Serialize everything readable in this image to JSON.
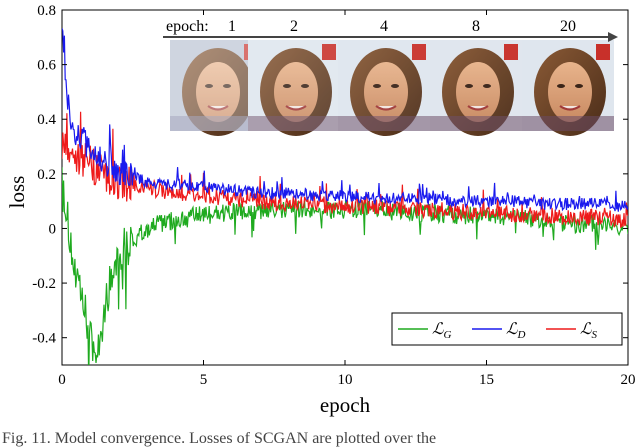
{
  "chart_data": {
    "type": "line",
    "xlabel": "epoch",
    "ylabel": "loss",
    "xlim": [
      0,
      20
    ],
    "ylim": [
      -0.5,
      0.8
    ],
    "xticks": [
      "0",
      "5",
      "10",
      "15",
      "20"
    ],
    "yticks": [
      "-0.4",
      "-0.2",
      "0",
      "0.2",
      "0.4",
      "0.6",
      "0.8"
    ],
    "legend_placement": "bottom-right",
    "series": [
      {
        "name": "L_G",
        "legend_main": "ℒ",
        "legend_sub": "G",
        "color": "#1faa1f",
        "x": [
          0,
          0.1,
          0.3,
          0.5,
          0.8,
          1.0,
          1.2,
          1.5,
          1.8,
          2.0,
          2.5,
          3,
          3.5,
          4,
          5,
          6,
          7,
          8,
          9,
          10,
          11,
          12,
          13,
          14,
          15,
          16,
          17,
          18,
          19,
          20
        ],
        "y": [
          0.3,
          0.1,
          -0.05,
          -0.2,
          -0.3,
          -0.4,
          -0.48,
          -0.3,
          -0.15,
          -0.08,
          -0.05,
          0.0,
          0.02,
          0.03,
          0.05,
          0.06,
          0.06,
          0.07,
          0.07,
          0.07,
          0.07,
          0.06,
          0.06,
          0.05,
          0.05,
          0.04,
          0.03,
          0.02,
          0.01,
          0.0
        ]
      },
      {
        "name": "L_D",
        "legend_main": "ℒ",
        "legend_sub": "D",
        "color": "#1a1aee",
        "x": [
          0,
          0.1,
          0.3,
          0.5,
          0.8,
          1.0,
          1.2,
          1.5,
          1.8,
          2.0,
          2.5,
          3,
          3.5,
          4,
          5,
          6,
          7,
          8,
          9,
          10,
          11,
          12,
          13,
          14,
          15,
          16,
          17,
          18,
          19,
          20
        ],
        "y": [
          0.78,
          0.55,
          0.4,
          0.35,
          0.32,
          0.28,
          0.27,
          0.24,
          0.22,
          0.2,
          0.19,
          0.17,
          0.16,
          0.16,
          0.15,
          0.14,
          0.13,
          0.13,
          0.12,
          0.12,
          0.11,
          0.11,
          0.11,
          0.1,
          0.1,
          0.1,
          0.09,
          0.09,
          0.09,
          0.08
        ]
      },
      {
        "name": "L_S",
        "legend_main": "ℒ",
        "legend_sub": "S",
        "color": "#ee1a1a",
        "x": [
          0,
          0.1,
          0.3,
          0.5,
          0.8,
          1.0,
          1.2,
          1.5,
          1.8,
          2.0,
          2.5,
          3,
          3.5,
          4,
          5,
          6,
          7,
          8,
          9,
          10,
          11,
          12,
          13,
          14,
          15,
          16,
          17,
          18,
          19,
          20
        ],
        "y": [
          0.32,
          0.3,
          0.28,
          0.26,
          0.25,
          0.24,
          0.22,
          0.2,
          0.18,
          0.17,
          0.16,
          0.15,
          0.14,
          0.13,
          0.12,
          0.11,
          0.1,
          0.09,
          0.09,
          0.08,
          0.08,
          0.07,
          0.07,
          0.06,
          0.06,
          0.05,
          0.05,
          0.04,
          0.04,
          0.03
        ]
      }
    ],
    "inset": {
      "prefix": "epoch:",
      "labels": [
        "1",
        "2",
        "4",
        "8",
        "20"
      ]
    }
  },
  "caption": "Fig. 11. Model convergence. Losses of SCGAN are plotted over the"
}
